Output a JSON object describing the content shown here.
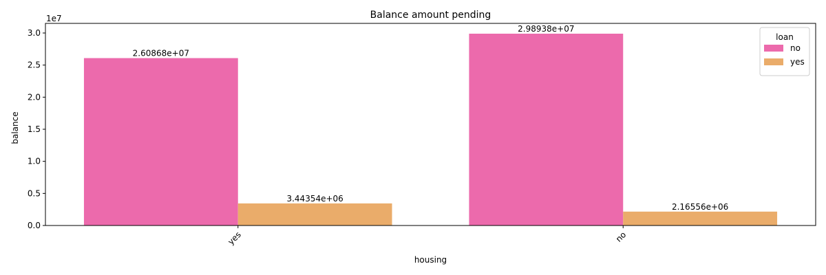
{
  "chart_data": {
    "type": "bar",
    "title": "Balance amount pending",
    "xlabel": "housing",
    "ylabel": "balance",
    "categories": [
      "yes",
      "no"
    ],
    "series": [
      {
        "name": "no",
        "values": [
          26086800,
          29893800
        ],
        "labels": [
          "2.60868e+07",
          "2.98938e+07"
        ],
        "color": "#ec6aac"
      },
      {
        "name": "yes",
        "values": [
          3443540,
          2165560
        ],
        "labels": [
          "3.44354e+06",
          "2.16556e+06"
        ],
        "color": "#eaac6a"
      }
    ],
    "ylim": [
      0,
      31500000
    ],
    "yticks": [
      0,
      5000000,
      10000000,
      15000000,
      20000000,
      25000000,
      30000000
    ],
    "ytick_labels": [
      "0.0",
      "0.5",
      "1.0",
      "1.5",
      "2.0",
      "2.5",
      "3.0"
    ],
    "y_offset_text": "1e7",
    "legend": {
      "title": "loan",
      "position": "top-right"
    },
    "grid": false,
    "xtick_rotation": 45
  }
}
